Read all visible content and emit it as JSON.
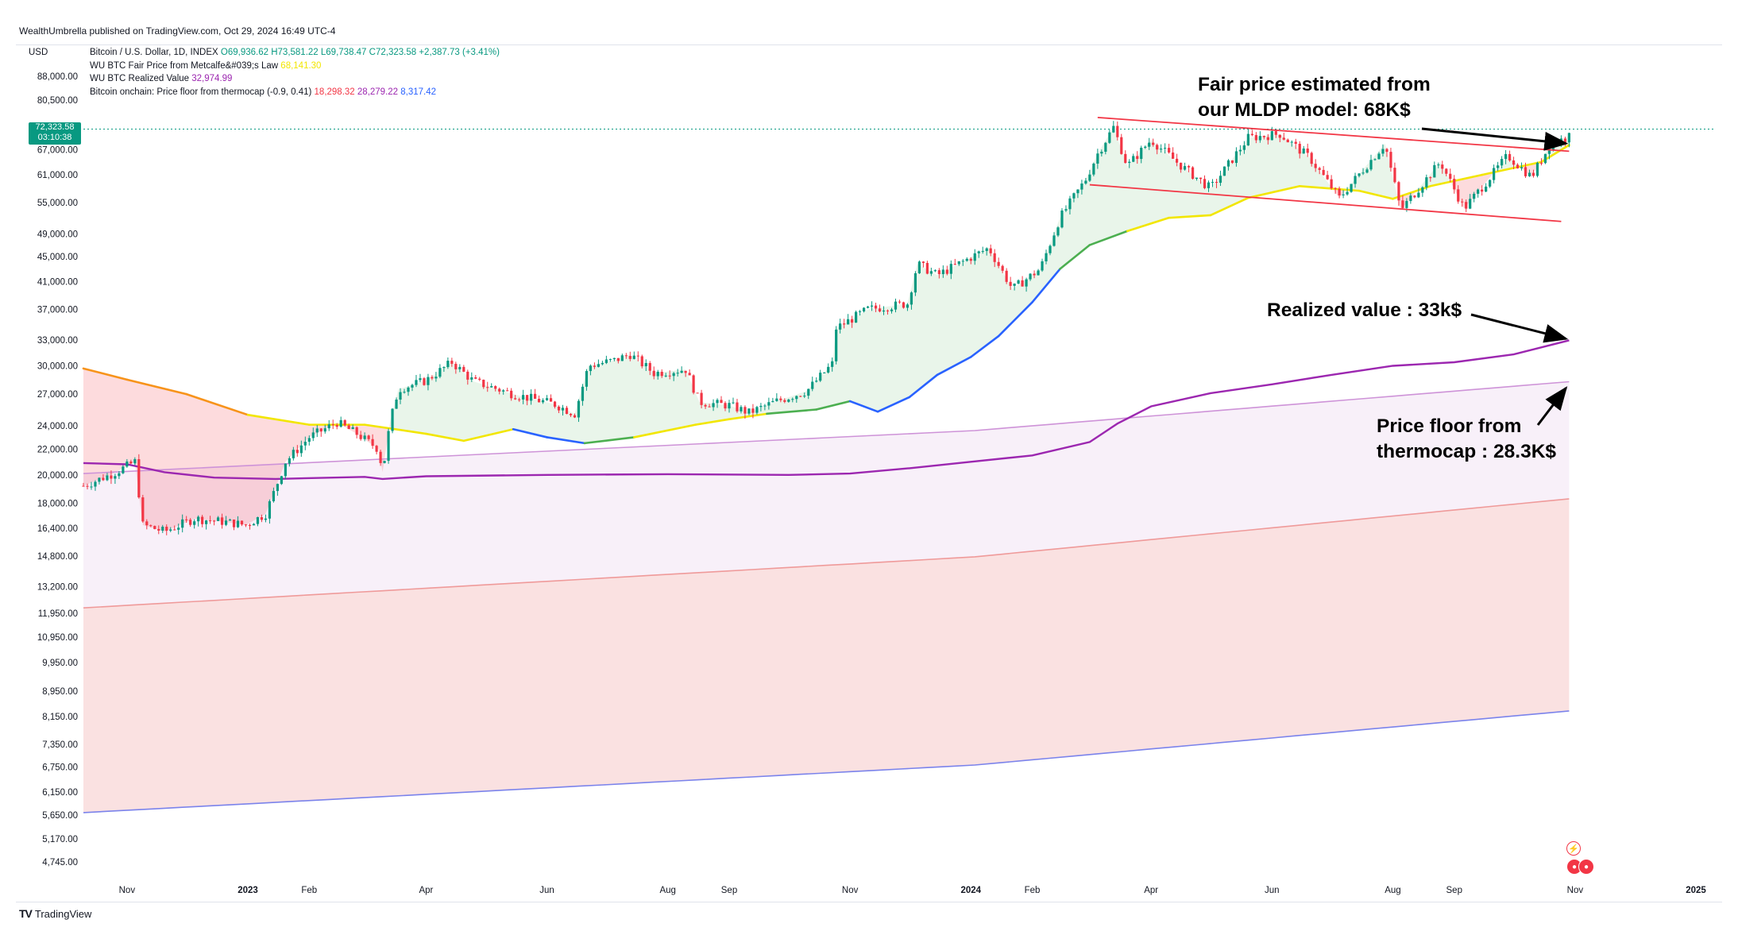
{
  "publisher_line": "WealthUmbrella published on TradingView.com, Oct 29, 2024 16:49 UTC-4",
  "currency": "USD",
  "legend": {
    "symbol": "Bitcoin / U.S. Dollar, 1D, INDEX",
    "open": "O69,936.62",
    "high": "H73,581.22",
    "low": "L69,738.47",
    "close": "C72,323.58",
    "change": "+2,387.73 (+3.41%)",
    "fair_price_label": "WU BTC Fair Price from Metcalfe&#039;s Law",
    "fair_price_value": "68,141.30",
    "realized_label": "WU BTC Realized Value",
    "realized_value": "32,974.99",
    "thermocap_label": "Bitcoin onchain: Price floor from thermocap (-0.9, 0.41)",
    "thermocap_v1": "18,298.32",
    "thermocap_v2": "28,279.22",
    "thermocap_v3": "8,317.42"
  },
  "price_tag": {
    "price": "72,323.58",
    "countdown": "03:10:38"
  },
  "footer_brand": "TradingView",
  "colors": {
    "candle_up": "#089981",
    "candle_down": "#f23645",
    "fair_low": "#f7931a",
    "fair_mid": "#f2e600",
    "fair_green": "#4caf50",
    "fair_blue": "#2962ff",
    "realized": "#9c27b0",
    "thermo_mid": "#ce93d8",
    "thermo_red": "#ef9a9a",
    "thermo_blue": "#7b83eb",
    "channel": "#f23645",
    "annotation": "#000000"
  },
  "chart_data": {
    "type": "line",
    "scale": "log",
    "title": "",
    "y_ticks": [
      88000,
      80500,
      67000,
      61000,
      55000,
      49000,
      45000,
      41000,
      37000,
      33000,
      30000,
      27000,
      24000,
      22000,
      20000,
      18000,
      16400,
      14800,
      13200,
      11950,
      10950,
      9950,
      8950,
      8150,
      7350,
      6750,
      6150,
      5650,
      5170,
      4745
    ],
    "y_tick_labels": [
      "88,000.00",
      "80,500.00",
      "67,000.00",
      "61,000.00",
      "55,000.00",
      "49,000.00",
      "45,000.00",
      "41,000.00",
      "37,000.00",
      "33,000.00",
      "30,000.00",
      "27,000.00",
      "24,000.00",
      "22,000.00",
      "20,000.00",
      "18,000.00",
      "16,400.00",
      "14,800.00",
      "13,200.00",
      "11,950.00",
      "10,950.00",
      "9,950.00",
      "8,950.00",
      "8,150.00",
      "7,350.00",
      "6,750.00",
      "6,150.00",
      "5,650.00",
      "5,170.00",
      "4,745.00"
    ],
    "x_ticks": [
      {
        "label": "Nov",
        "date": "2022-11-01",
        "bold": false
      },
      {
        "label": "2023",
        "date": "2023-01-01",
        "bold": true
      },
      {
        "label": "Feb",
        "date": "2023-02-01",
        "bold": false
      },
      {
        "label": "Apr",
        "date": "2023-04-01",
        "bold": false
      },
      {
        "label": "Jun",
        "date": "2023-06-01",
        "bold": false
      },
      {
        "label": "Aug",
        "date": "2023-08-01",
        "bold": false
      },
      {
        "label": "Sep",
        "date": "2023-09-01",
        "bold": false
      },
      {
        "label": "Nov",
        "date": "2023-11-01",
        "bold": false
      },
      {
        "label": "2024",
        "date": "2024-01-01",
        "bold": true
      },
      {
        "label": "Feb",
        "date": "2024-02-01",
        "bold": false
      },
      {
        "label": "Apr",
        "date": "2024-04-01",
        "bold": false
      },
      {
        "label": "Jun",
        "date": "2024-06-01",
        "bold": false
      },
      {
        "label": "Aug",
        "date": "2024-08-01",
        "bold": false
      },
      {
        "label": "Sep",
        "date": "2024-09-01",
        "bold": false
      },
      {
        "label": "Nov",
        "date": "2024-11-01",
        "bold": false
      },
      {
        "label": "2025",
        "date": "2025-01-01",
        "bold": true
      }
    ],
    "price_series": {
      "name": "Bitcoin / U.S. Dollar",
      "points": [
        [
          "2022-10-10",
          19200
        ],
        [
          "2022-10-25",
          20100
        ],
        [
          "2022-11-05",
          21000
        ],
        [
          "2022-11-09",
          16600
        ],
        [
          "2022-11-20",
          16200
        ],
        [
          "2022-12-05",
          17000
        ],
        [
          "2022-12-20",
          16800
        ],
        [
          "2022-12-31",
          16600
        ],
        [
          "2023-01-10",
          17300
        ],
        [
          "2023-01-20",
          21000
        ],
        [
          "2023-02-01",
          23000
        ],
        [
          "2023-02-15",
          24300
        ],
        [
          "2023-02-25",
          23300
        ],
        [
          "2023-03-08",
          22000
        ],
        [
          "2023-03-10",
          20200
        ],
        [
          "2023-03-14",
          24500
        ],
        [
          "2023-03-18",
          27500
        ],
        [
          "2023-04-01",
          28400
        ],
        [
          "2023-04-14",
          30400
        ],
        [
          "2023-04-25",
          28300
        ],
        [
          "2023-05-15",
          27000
        ],
        [
          "2023-06-05",
          26000
        ],
        [
          "2023-06-15",
          25100
        ],
        [
          "2023-06-22",
          30000
        ],
        [
          "2023-07-05",
          30600
        ],
        [
          "2023-07-13",
          31300
        ],
        [
          "2023-07-25",
          29200
        ],
        [
          "2023-08-10",
          29600
        ],
        [
          "2023-08-17",
          26200
        ],
        [
          "2023-09-01",
          25900
        ],
        [
          "2023-09-11",
          25200
        ],
        [
          "2023-09-25",
          26300
        ],
        [
          "2023-10-10",
          27300
        ],
        [
          "2023-10-23",
          30200
        ],
        [
          "2023-10-25",
          34500
        ],
        [
          "2023-11-10",
          37000
        ],
        [
          "2023-11-30",
          37800
        ],
        [
          "2023-12-05",
          43800
        ],
        [
          "2023-12-15",
          42000
        ],
        [
          "2024-01-10",
          46500
        ],
        [
          "2024-01-22",
          39900
        ],
        [
          "2024-02-05",
          43000
        ],
        [
          "2024-02-15",
          52000
        ],
        [
          "2024-02-28",
          60000
        ],
        [
          "2024-03-05",
          66000
        ],
        [
          "2024-03-13",
          72800
        ],
        [
          "2024-03-20",
          63000
        ],
        [
          "2024-04-01",
          69500
        ],
        [
          "2024-04-15",
          63500
        ],
        [
          "2024-05-01",
          58000
        ],
        [
          "2024-05-20",
          70000
        ],
        [
          "2024-06-05",
          71000
        ],
        [
          "2024-06-20",
          65000
        ],
        [
          "2024-07-05",
          56000
        ],
        [
          "2024-07-28",
          68500
        ],
        [
          "2024-08-05",
          53500
        ],
        [
          "2024-08-25",
          64000
        ],
        [
          "2024-09-06",
          53800
        ],
        [
          "2024-09-28",
          65500
        ],
        [
          "2024-10-10",
          60500
        ],
        [
          "2024-10-20",
          68800
        ],
        [
          "2024-10-28",
          69900
        ],
        [
          "2024-10-29",
          72323.58
        ]
      ]
    },
    "fair_price_series": {
      "name": "WU BTC Fair Price from Metcalfe&#039;s Law",
      "last_value": 68141.3,
      "points": [
        [
          "2022-10-10",
          29700
        ],
        [
          "2022-11-01",
          28500
        ],
        [
          "2022-12-01",
          27000
        ],
        [
          "2023-01-01",
          25000
        ],
        [
          "2023-02-01",
          24100
        ],
        [
          "2023-03-01",
          24100
        ],
        [
          "2023-04-01",
          23300
        ],
        [
          "2023-04-20",
          22700
        ],
        [
          "2023-05-15",
          23700
        ],
        [
          "2023-06-01",
          23000
        ],
        [
          "2023-06-20",
          22500
        ],
        [
          "2023-07-15",
          23000
        ],
        [
          "2023-08-15",
          24100
        ],
        [
          "2023-09-01",
          24600
        ],
        [
          "2023-09-20",
          25100
        ],
        [
          "2023-10-15",
          25500
        ],
        [
          "2023-11-01",
          26300
        ],
        [
          "2023-11-15",
          25300
        ],
        [
          "2023-12-01",
          26700
        ],
        [
          "2023-12-15",
          29000
        ],
        [
          "2024-01-01",
          31000
        ],
        [
          "2024-01-15",
          33500
        ],
        [
          "2024-02-01",
          38000
        ],
        [
          "2024-02-15",
          43000
        ],
        [
          "2024-03-01",
          47000
        ],
        [
          "2024-03-20",
          49500
        ],
        [
          "2024-04-10",
          52000
        ],
        [
          "2024-05-01",
          52500
        ],
        [
          "2024-05-20",
          56000
        ],
        [
          "2024-06-15",
          58500
        ],
        [
          "2024-07-15",
          57500
        ],
        [
          "2024-08-01",
          55800
        ],
        [
          "2024-08-20",
          58500
        ],
        [
          "2024-09-15",
          61000
        ],
        [
          "2024-10-15",
          64000
        ],
        [
          "2024-10-29",
          68141.3
        ]
      ]
    },
    "realized_value_series": {
      "name": "WU BTC Realized Value",
      "last_value": 32974.99,
      "points": [
        [
          "2022-10-10",
          20900
        ],
        [
          "2022-11-01",
          20800
        ],
        [
          "2022-11-20",
          20200
        ],
        [
          "2022-12-15",
          19800
        ],
        [
          "2023-01-15",
          19700
        ],
        [
          "2023-03-01",
          19850
        ],
        [
          "2023-03-10",
          19700
        ],
        [
          "2023-04-01",
          19900
        ],
        [
          "2023-06-01",
          20000
        ],
        [
          "2023-08-01",
          20050
        ],
        [
          "2023-10-01",
          20000
        ],
        [
          "2023-11-01",
          20100
        ],
        [
          "2023-12-01",
          20500
        ],
        [
          "2024-01-01",
          21000
        ],
        [
          "2024-02-01",
          21500
        ],
        [
          "2024-03-01",
          22600
        ],
        [
          "2024-03-15",
          24200
        ],
        [
          "2024-04-01",
          25800
        ],
        [
          "2024-05-01",
          27100
        ],
        [
          "2024-06-01",
          28000
        ],
        [
          "2024-07-01",
          29000
        ],
        [
          "2024-08-01",
          30000
        ],
        [
          "2024-09-01",
          30400
        ],
        [
          "2024-10-01",
          31300
        ],
        [
          "2024-10-29",
          32974.99
        ]
      ]
    },
    "thermocap_series": [
      {
        "name": "Price floor from thermocap (-0.9)",
        "last_value": 18298.32,
        "start_value": 12200
      },
      {
        "name": "Price floor from thermocap (0.41)",
        "last_value": 28279.22,
        "start_value": 20100
      },
      {
        "name": "Price floor from thermocap",
        "last_value": 8317.42,
        "start_value": 5700
      }
    ],
    "channel_lines": [
      {
        "start": [
          "2024-03-05",
          75500
        ],
        "end": [
          "2024-10-29",
          66600
        ]
      },
      {
        "start": [
          "2024-03-01",
          58800
        ],
        "end": [
          "2024-10-25",
          51300
        ]
      }
    ],
    "annotations": [
      {
        "lines": [
          "Fair price estimated from",
          "our MLDP model: 68K$"
        ],
        "target": [
          "2024-10-29",
          68141
        ]
      },
      {
        "lines": [
          "Realized value : 33k$"
        ],
        "target": [
          "2024-10-29",
          32975
        ]
      },
      {
        "lines": [
          "Price floor from",
          "thermocap : 28.3K$"
        ],
        "target": [
          "2024-10-29",
          28279
        ]
      }
    ]
  }
}
